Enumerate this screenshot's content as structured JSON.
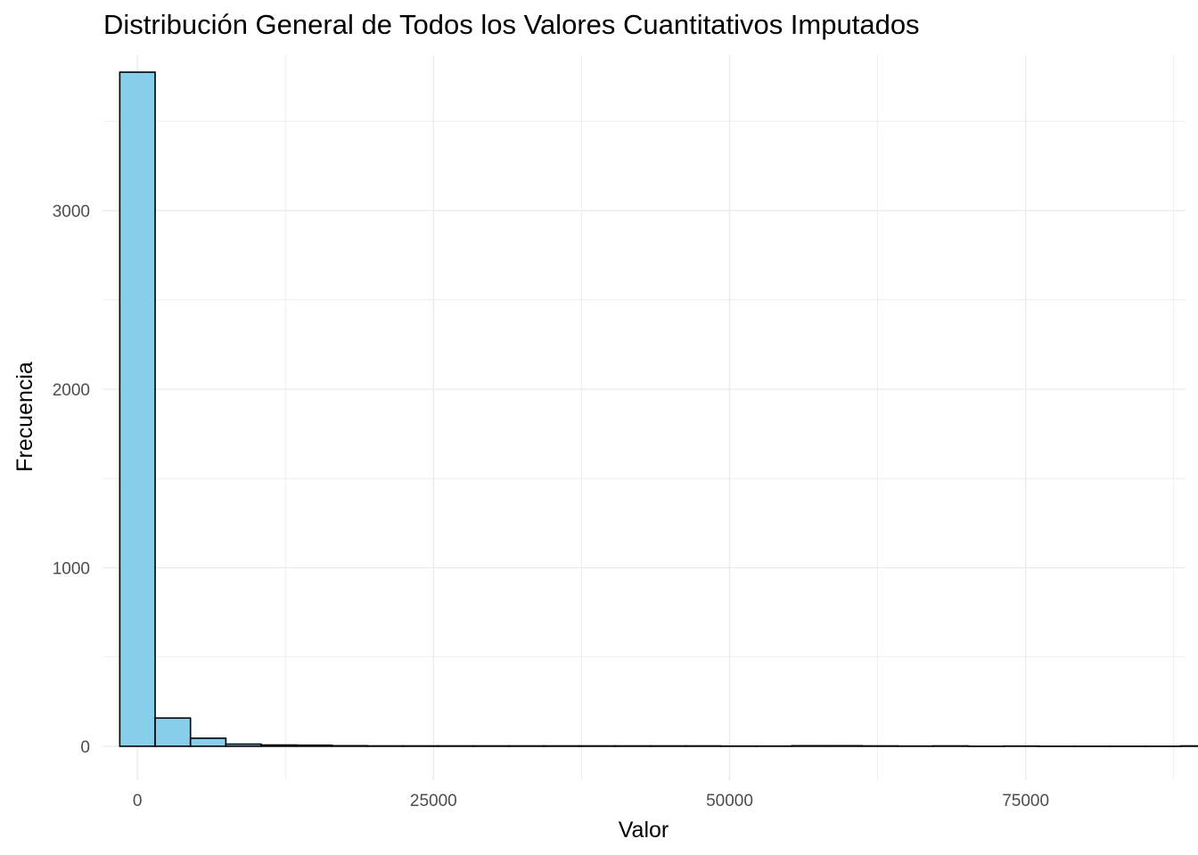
{
  "chart_data": {
    "type": "bar",
    "title": "Distribución General de Todos los Valores Cuantitativos Imputados",
    "xlabel": "Valor",
    "ylabel": "Frecuencia",
    "xlim": [
      -2950,
      88500
    ],
    "ylim": [
      -190,
      3870
    ],
    "x_ticks": [
      0,
      25000,
      50000,
      75000
    ],
    "x_tick_labels": [
      "0",
      "25000",
      "50000",
      "75000"
    ],
    "y_ticks": [
      0,
      1000,
      2000,
      3000
    ],
    "y_tick_labels": [
      "0",
      "1000",
      "2000",
      "3000"
    ],
    "bin_width": 2986,
    "bin_start": -1493,
    "counts": [
      3775,
      158,
      45,
      12,
      7,
      6,
      3,
      2,
      2,
      2,
      2,
      2,
      2,
      2,
      2,
      2,
      2,
      1,
      1,
      3,
      3,
      2,
      1,
      2,
      0,
      1,
      0,
      0,
      0,
      0,
      2,
      2,
      1,
      0,
      2,
      1,
      1
    ],
    "grid": true,
    "legend": "none",
    "bar_fill": "#87ceeb",
    "bar_stroke": "#000000",
    "grid_color": "#ebebeb"
  }
}
